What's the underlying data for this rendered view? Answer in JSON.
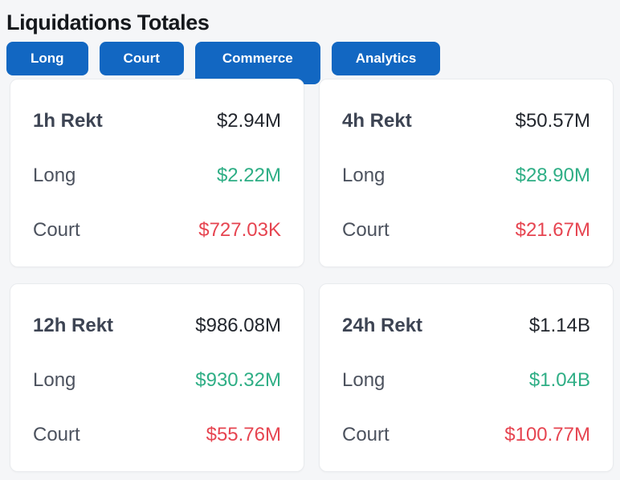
{
  "title": "Liquidations Totales",
  "tabs": [
    {
      "label": "Long",
      "active": false
    },
    {
      "label": "Court",
      "active": false
    },
    {
      "label": "Commerce",
      "active": true
    },
    {
      "label": "Analytics",
      "active": false
    }
  ],
  "colors": {
    "accent_blue": "#1267c2",
    "positive_green": "#2eae85",
    "negative_red": "#e64450"
  },
  "cards": [
    {
      "period": "1h Rekt",
      "total": "$2.94M",
      "long_label": "Long",
      "long_value": "$2.22M",
      "short_label": "Court",
      "short_value": "$727.03K"
    },
    {
      "period": "4h Rekt",
      "total": "$50.57M",
      "long_label": "Long",
      "long_value": "$28.90M",
      "short_label": "Court",
      "short_value": "$21.67M"
    },
    {
      "period": "12h Rekt",
      "total": "$986.08M",
      "long_label": "Long",
      "long_value": "$930.32M",
      "short_label": "Court",
      "short_value": "$55.76M"
    },
    {
      "period": "24h Rekt",
      "total": "$1.14B",
      "long_label": "Long",
      "long_value": "$1.04B",
      "short_label": "Court",
      "short_value": "$100.77M"
    }
  ]
}
